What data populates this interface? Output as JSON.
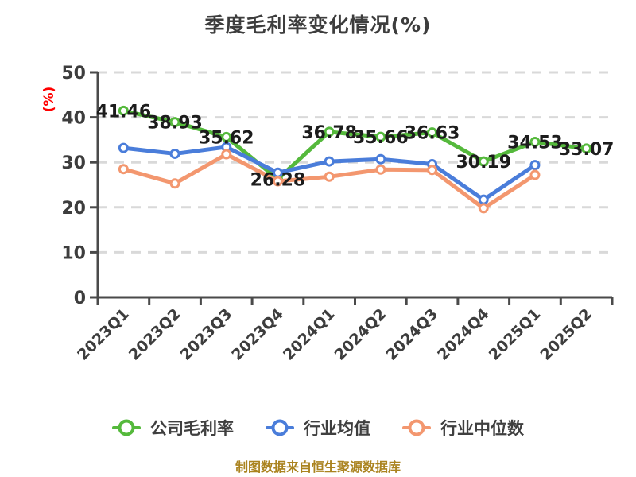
{
  "y_axis_label": "(%)",
  "footer": "制图数据来自恒生聚源数据库",
  "colors": {
    "background": "#ffffff",
    "title_text": "#3d3d3d",
    "axis_line": "#4a4a4a",
    "tick_text": "#3d3d3d",
    "grid_line": "#d9d9d9",
    "data_label_text": "#1c1c1c",
    "y_unit_label": "#ff0000",
    "footer_text": "#aa831f"
  },
  "chart_data": {
    "type": "line",
    "title": "季度毛利率变化情况(%)",
    "categories": [
      "2023Q1",
      "2023Q2",
      "2023Q3",
      "2023Q4",
      "2024Q1",
      "2024Q2",
      "2024Q3",
      "2024Q4",
      "2025Q1",
      "2025Q2"
    ],
    "series": [
      {
        "name": "公司毛利率",
        "color": "#55b93c",
        "show_labels": true,
        "values": [
          41.46,
          38.93,
          35.62,
          26.28,
          36.78,
          35.66,
          36.63,
          30.19,
          34.53,
          33.07
        ]
      },
      {
        "name": "行业均值",
        "color": "#4a7dda",
        "show_labels": false,
        "values": [
          33.2,
          31.9,
          33.4,
          27.7,
          30.2,
          30.7,
          29.6,
          21.7,
          29.4,
          null
        ]
      },
      {
        "name": "行业中位数",
        "color": "#f3976f",
        "show_labels": false,
        "values": [
          28.5,
          25.3,
          31.8,
          25.8,
          26.8,
          28.4,
          28.3,
          19.8,
          27.2,
          null
        ]
      }
    ],
    "ylim": [
      0,
      50
    ],
    "yticks": [
      0,
      10,
      20,
      30,
      40,
      50
    ],
    "grid": "horizontal-dashed",
    "legend_position": "bottom",
    "marker": "circle-white-fill"
  }
}
